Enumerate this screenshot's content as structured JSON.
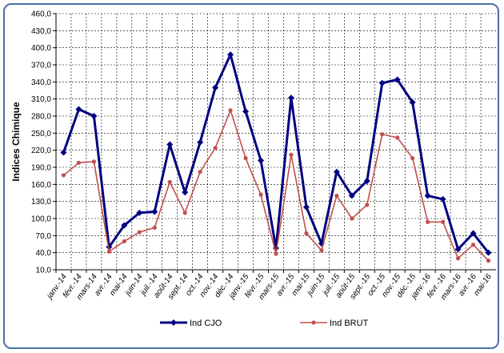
{
  "chart_data": {
    "type": "line",
    "title": "",
    "xlabel": "",
    "ylabel": "Indices Chimique",
    "ylim": [
      10,
      460
    ],
    "ytick_step": 30,
    "yticks": [
      "10,0",
      "40,0",
      "70,0",
      "100,0",
      "130,0",
      "160,0",
      "190,0",
      "220,0",
      "250,0",
      "280,0",
      "310,0",
      "340,0",
      "370,0",
      "400,0",
      "430,0",
      "460,0"
    ],
    "grid": true,
    "legend_position": "bottom",
    "categories": [
      "janv.-14",
      "févr.-14",
      "mars-14",
      "avr.-14",
      "mai-14",
      "juin-14",
      "juil.-14",
      "août-14",
      "sept.-14",
      "oct.-14",
      "nov.-14",
      "déc.-14",
      "janv.-15",
      "févr.-15",
      "mars-15",
      "avr.-15",
      "mai-15",
      "juin-15",
      "juil.-15",
      "août-15",
      "sept.-15",
      "oct.-15",
      "nov.-15",
      "déc.-15",
      "janv.-16",
      "févr.-16",
      "mars-16",
      "avr.-16",
      "mai-16"
    ],
    "series": [
      {
        "name": "Ind CJO",
        "color": "#000080",
        "marker": "diamond",
        "values": [
          216,
          292,
          280,
          50,
          88,
          110,
          112,
          230,
          146,
          234,
          330,
          388,
          288,
          202,
          48,
          312,
          120,
          56,
          182,
          140,
          166,
          338,
          344,
          304,
          140,
          134,
          46,
          74,
          40
        ]
      },
      {
        "name": "Ind BRUT",
        "color": "#c0504d",
        "marker": "circle",
        "values": [
          176,
          198,
          200,
          42,
          60,
          76,
          84,
          164,
          110,
          182,
          224,
          290,
          206,
          142,
          38,
          212,
          74,
          44,
          140,
          100,
          124,
          248,
          242,
          206,
          94,
          94,
          30,
          54,
          26
        ]
      }
    ]
  }
}
